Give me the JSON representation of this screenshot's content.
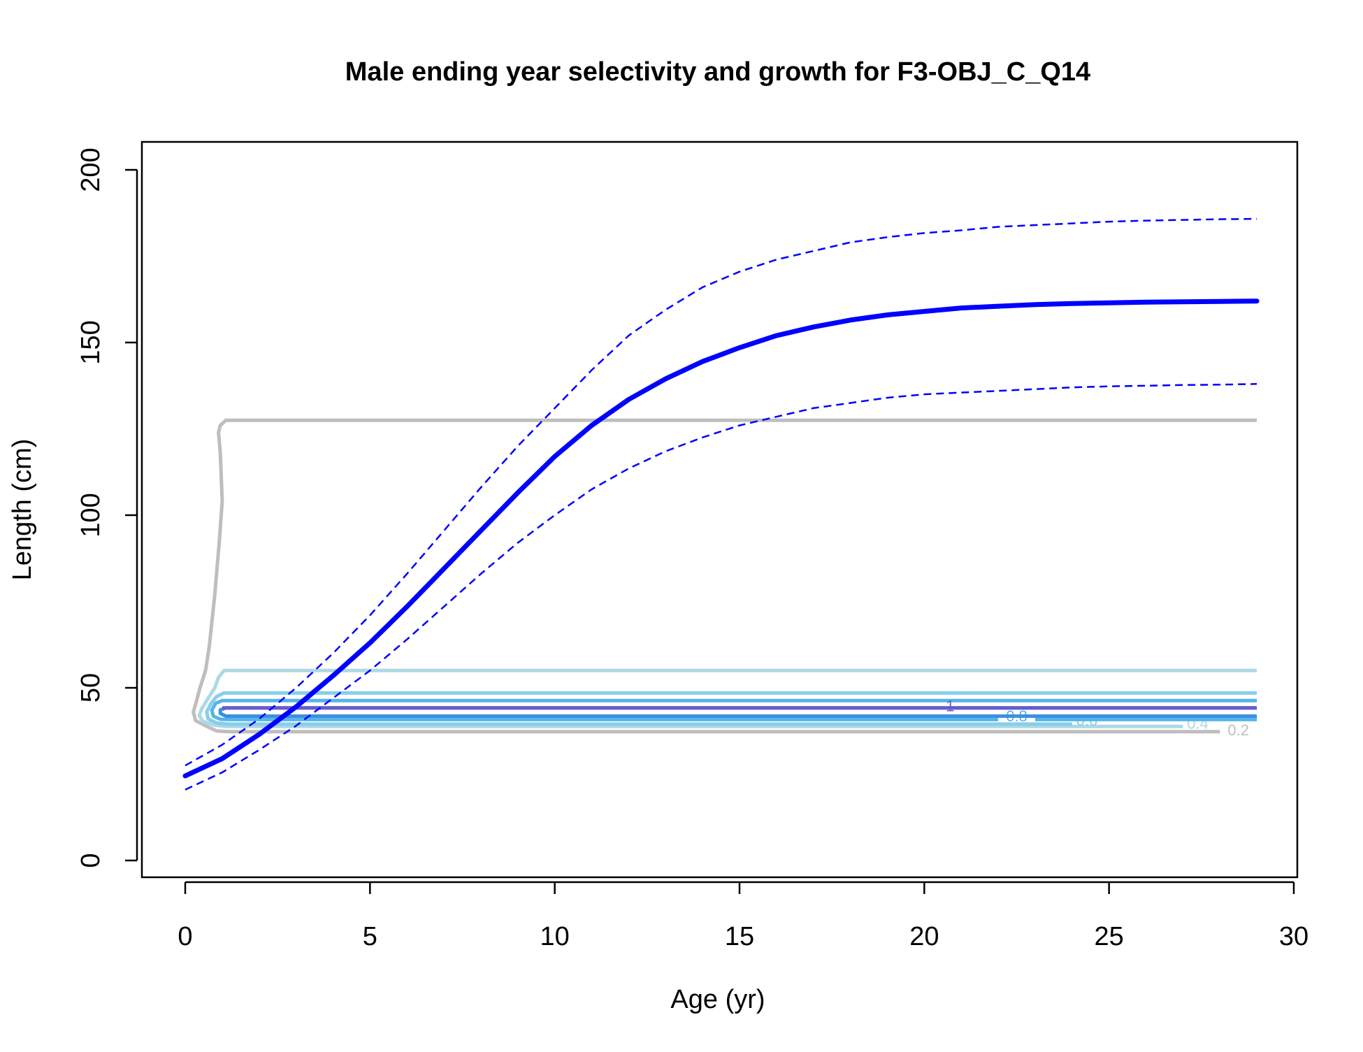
{
  "chart_data": {
    "type": "line",
    "title": "Male ending year selectivity and growth for F3-OBJ_C_Q14",
    "xlabel": "Age (yr)",
    "ylabel": "Length (cm)",
    "xlim": [
      0,
      30
    ],
    "ylim": [
      0,
      200
    ],
    "xticks": [
      0,
      5,
      10,
      15,
      20,
      25,
      30
    ],
    "yticks": [
      0,
      50,
      100,
      150,
      200
    ],
    "x_tick_labels": [
      "0",
      "5",
      "10",
      "15",
      "20",
      "25",
      "30"
    ],
    "y_tick_labels": [
      "0",
      "50",
      "100",
      "150",
      "200"
    ],
    "grid": false,
    "legend": "none",
    "growth": {
      "color": "#0000ff",
      "ages": [
        0,
        1,
        2,
        3,
        4,
        5,
        6,
        7,
        8,
        9,
        10,
        11,
        12,
        13,
        14,
        15,
        16,
        17,
        18,
        19,
        20,
        21,
        22,
        23,
        24,
        25,
        26,
        27,
        28,
        29
      ],
      "mean": [
        24.5,
        29.5,
        36.5,
        44.5,
        53.5,
        63,
        73.5,
        84.5,
        95.5,
        106.5,
        117,
        126,
        133.5,
        139.5,
        144.5,
        148.5,
        152,
        154.5,
        156.5,
        158,
        159,
        160,
        160.5,
        161,
        161.3,
        161.5,
        161.7,
        161.8,
        161.9,
        162
      ],
      "upper": [
        27.5,
        33.5,
        41,
        50,
        60,
        71,
        83,
        95.5,
        108,
        120,
        131,
        142,
        152,
        159.5,
        166,
        170.5,
        174,
        176.5,
        179,
        180.5,
        181.7,
        182.5,
        183.5,
        184,
        184.5,
        185,
        185.3,
        185.5,
        185.7,
        185.8
      ],
      "lower": [
        20.5,
        25.5,
        32,
        39,
        47,
        55,
        64,
        73.5,
        83,
        92,
        100,
        107.5,
        113.5,
        118.5,
        122.5,
        126,
        128.5,
        131,
        132.5,
        134,
        135,
        135.5,
        136,
        136.5,
        137,
        137.3,
        137.5,
        137.7,
        137.8,
        138
      ]
    },
    "selectivity_contours": [
      {
        "level": "0.2",
        "color": "#bebebe",
        "points": [
          [
            29,
            127.5
          ],
          [
            1.1,
            127.5
          ],
          [
            0.95,
            126
          ],
          [
            0.9,
            124
          ],
          [
            0.95,
            118
          ],
          [
            1.0,
            104
          ],
          [
            0.92,
            92
          ],
          [
            0.8,
            77
          ],
          [
            0.65,
            62
          ],
          [
            0.55,
            55
          ],
          [
            0.4,
            50
          ],
          [
            0.3,
            46
          ],
          [
            0.22,
            43
          ],
          [
            0.28,
            40.5
          ],
          [
            0.55,
            39
          ],
          [
            0.85,
            37.5
          ],
          [
            1.2,
            37.3
          ],
          [
            28,
            37.3
          ]
        ],
        "label": {
          "x": 28.5,
          "y": 36.2,
          "text": "0.2"
        }
      },
      {
        "level": "0.4",
        "color": "#add8e6",
        "points": [
          [
            29,
            55
          ],
          [
            1.05,
            55
          ],
          [
            0.9,
            53
          ],
          [
            0.8,
            50
          ],
          [
            0.62,
            47
          ],
          [
            0.45,
            44
          ],
          [
            0.38,
            42
          ],
          [
            0.48,
            40.3
          ],
          [
            0.75,
            39.3
          ],
          [
            1.1,
            38.8
          ],
          [
            27,
            38.8
          ]
        ],
        "label": {
          "x": 27.4,
          "y": 38.2,
          "text": "0.4"
        }
      },
      {
        "level": "0.6",
        "color": "#87ceeb",
        "points": [
          [
            29,
            48.5
          ],
          [
            1.05,
            48.5
          ],
          [
            0.85,
            47.5
          ],
          [
            0.7,
            45.5
          ],
          [
            0.58,
            43
          ],
          [
            0.62,
            41
          ],
          [
            0.85,
            39.8
          ],
          [
            1.15,
            39.5
          ],
          [
            24,
            39.5
          ]
        ],
        "label": {
          "x": 24.4,
          "y": 39.1,
          "text": "0.6"
        }
      },
      {
        "level": "0.8",
        "color": "#56b4e9",
        "points": [
          [
            29,
            46.3
          ],
          [
            1.0,
            46.3
          ],
          [
            0.82,
            45.5
          ],
          [
            0.72,
            43.5
          ],
          [
            0.76,
            41.8
          ],
          [
            0.95,
            40.9
          ],
          [
            1.2,
            40.8
          ],
          [
            22,
            40.8
          ]
        ],
        "label": {
          "x": 22.5,
          "y": 40.3,
          "text": "0.8"
        },
        "tail": [
          [
            23,
            40.8
          ],
          [
            29,
            40.8
          ]
        ]
      },
      {
        "level": "0.9",
        "color": "#3f8fdf",
        "points": [
          [
            29,
            41.8
          ],
          [
            1.1,
            41.8
          ],
          [
            0.95,
            42.6
          ],
          [
            0.95,
            43.6
          ],
          [
            1.1,
            44.2
          ],
          [
            29,
            44.2
          ]
        ]
      },
      {
        "level": "1",
        "color": "#6a5acd",
        "points": [
          [
            29,
            44.2
          ],
          [
            1.0,
            44.2
          ]
        ],
        "label": {
          "x": 20.7,
          "y": 43.2,
          "text": "1"
        }
      }
    ]
  }
}
